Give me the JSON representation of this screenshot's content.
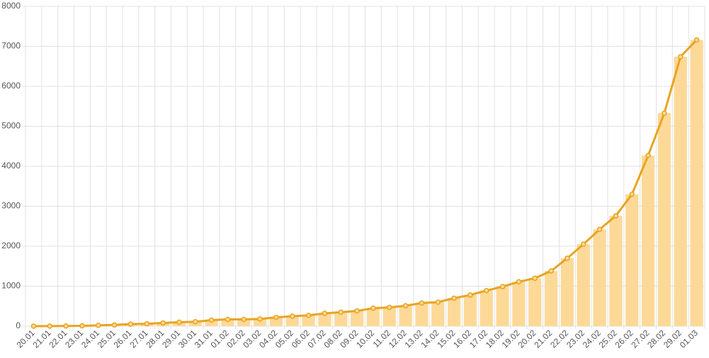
{
  "chart_data": {
    "type": "bar_line",
    "categories": [
      "20.01",
      "21.01",
      "22.01",
      "23.01",
      "24.01",
      "25.01",
      "26.01",
      "27.01",
      "28.01",
      "29.01",
      "30.01",
      "31.01",
      "01.02",
      "02.02",
      "03.02",
      "04.02",
      "05.02",
      "06.02",
      "07.02",
      "08.02",
      "09.02",
      "10.02",
      "11.02",
      "12.02",
      "13.02",
      "14.02",
      "15.02",
      "16.02",
      "17.02",
      "18.02",
      "19.02",
      "20.02",
      "21.02",
      "22.02",
      "23.02",
      "24.02",
      "25.02",
      "26.02",
      "27.02",
      "28.02",
      "29.02",
      "01.03"
    ],
    "values": [
      0,
      2,
      5,
      8,
      20,
      30,
      50,
      60,
      80,
      100,
      110,
      150,
      170,
      170,
      180,
      220,
      250,
      270,
      320,
      350,
      380,
      450,
      470,
      510,
      580,
      600,
      700,
      780,
      890,
      990,
      1110,
      1200,
      1380,
      1700,
      2050,
      2420,
      2760,
      3300,
      4270,
      5330,
      6740,
      7160
    ],
    "color": "#fdd998",
    "line_color": "#e8a420",
    "ylim": [
      0,
      8000
    ],
    "yticks": [
      0,
      1000,
      2000,
      3000,
      4000,
      5000,
      6000,
      7000,
      8000
    ],
    "grid": true
  }
}
